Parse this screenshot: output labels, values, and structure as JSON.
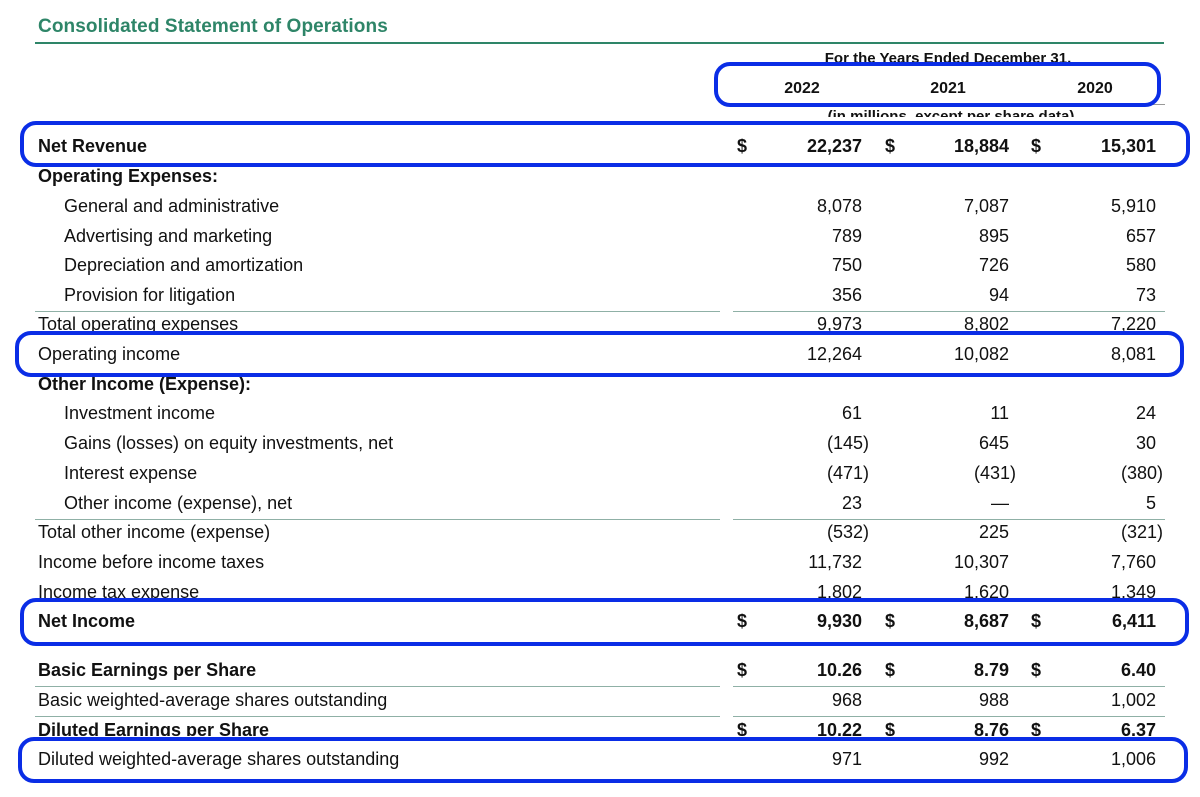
{
  "title": "Consolidated Statement of Operations",
  "period_label": "For the Years Ended December 31,",
  "units_label": "(in millions, except per share data)",
  "years": [
    "2022",
    "2021",
    "2020"
  ],
  "currency_symbol": "$",
  "rows": [
    {
      "label": "Net Revenue",
      "values": [
        "22,237",
        "18,884",
        "15,301"
      ]
    },
    {
      "label": "Operating Expenses:",
      "values": []
    },
    {
      "label": "General and administrative",
      "values": [
        "8,078",
        "7,087",
        "5,910"
      ]
    },
    {
      "label": "Advertising and marketing",
      "values": [
        "789",
        "895",
        "657"
      ]
    },
    {
      "label": "Depreciation and amortization",
      "values": [
        "750",
        "726",
        "580"
      ]
    },
    {
      "label": "Provision for litigation",
      "values": [
        "356",
        "94",
        "73"
      ]
    },
    {
      "label": "Total operating expenses",
      "values": [
        "9,973",
        "8,802",
        "7,220"
      ]
    },
    {
      "label": "Operating income",
      "values": [
        "12,264",
        "10,082",
        "8,081"
      ]
    },
    {
      "label": "Other Income (Expense):",
      "values": []
    },
    {
      "label": "Investment income",
      "values": [
        "61",
        "11",
        "24"
      ]
    },
    {
      "label": "Gains (losses) on equity investments, net",
      "values": [
        "(145)",
        "645",
        "30"
      ]
    },
    {
      "label": "Interest expense",
      "values": [
        "(471)",
        "(431)",
        "(380)"
      ]
    },
    {
      "label": "Other income (expense), net",
      "values": [
        "23",
        "—",
        "5"
      ]
    },
    {
      "label": "Total other income (expense)",
      "values": [
        "(532)",
        "225",
        "(321)"
      ]
    },
    {
      "label": "Income before income taxes",
      "values": [
        "11,732",
        "10,307",
        "7,760"
      ]
    },
    {
      "label": "Income tax expense",
      "values": [
        "1,802",
        "1,620",
        "1,349"
      ]
    },
    {
      "label": "Net Income",
      "values": [
        "9,930",
        "8,687",
        "6,411"
      ]
    },
    {
      "label": "Basic Earnings per Share",
      "values": [
        "10.26",
        "8.79",
        "6.40"
      ]
    },
    {
      "label": "Basic weighted-average shares outstanding",
      "values": [
        "968",
        "988",
        "1,002"
      ]
    },
    {
      "label": "Diluted Earnings per Share",
      "values": [
        "10.22",
        "8.76",
        "6.37"
      ]
    },
    {
      "label": "Diluted weighted-average shares outstanding",
      "values": [
        "971",
        "992",
        "1,006"
      ]
    }
  ],
  "highlight_color": "#0a2de6",
  "accent_color": "#2e8568"
}
